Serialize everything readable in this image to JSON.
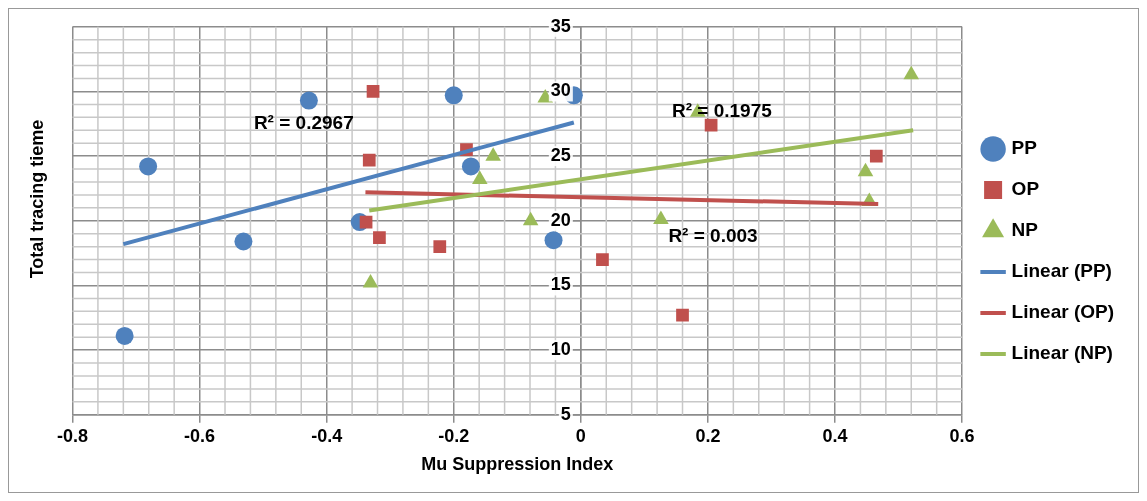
{
  "chart_data": {
    "type": "scatter",
    "xlabel": "Mu Suppression Index",
    "ylabel": "Total tracing tieme",
    "xlim": [
      -0.8,
      0.6
    ],
    "xticks": [
      -0.8,
      -0.6,
      -0.4,
      -0.2,
      0,
      0.2,
      0.4,
      0.6
    ],
    "ylim": [
      5,
      35
    ],
    "yticks": [
      5,
      10,
      15,
      20,
      25,
      30,
      35
    ],
    "grid": true,
    "legend": "right",
    "series": [
      {
        "name": "PP",
        "color": "#4f81bd",
        "marker": "circle",
        "x": [
          -0.718,
          -0.681,
          -0.531,
          -0.428,
          -0.348,
          -0.2,
          -0.173,
          -0.043,
          -0.011
        ],
        "values": [
          11.1,
          24.2,
          18.4,
          29.3,
          19.9,
          29.7,
          24.2,
          18.5,
          29.7
        ]
      },
      {
        "name": "OP",
        "color": "#c0504d",
        "marker": "square",
        "x": [
          -0.327,
          -0.333,
          -0.18,
          -0.338,
          -0.317,
          -0.222,
          0.034,
          0.16,
          0.205,
          0.465
        ],
        "values": [
          30,
          24.7,
          25.5,
          19.9,
          18.7,
          18,
          17,
          12.7,
          27.4,
          25
        ]
      },
      {
        "name": "NP",
        "color": "#9bbb59",
        "marker": "triangle",
        "x": [
          -0.331,
          -0.159,
          -0.138,
          -0.056,
          -0.079,
          0.126,
          0.184,
          0.448,
          0.454,
          0.52
        ],
        "values": [
          15.2,
          23.2,
          25,
          29.5,
          20,
          20.1,
          28.4,
          23.8,
          21.5,
          31.3
        ]
      },
      {
        "name": "Linear (PP)",
        "type": "line",
        "color": "#4f81bd",
        "marker": "none",
        "x": [
          -0.72,
          -0.011
        ],
        "values": [
          18.2,
          27.6
        ]
      },
      {
        "name": "Linear (OP)",
        "type": "line",
        "color": "#c0504d",
        "marker": "none",
        "x": [
          -0.339,
          0.468
        ],
        "values": [
          22.2,
          21.3
        ]
      },
      {
        "name": "Linear (NP)",
        "type": "line",
        "color": "#9bbb59",
        "marker": "none",
        "x": [
          -0.333,
          0.523
        ],
        "values": [
          20.8,
          27
        ]
      }
    ],
    "annotations": [
      "R² = 0.2967",
      "R² = 0.1975",
      "R² = 0.003"
    ]
  }
}
